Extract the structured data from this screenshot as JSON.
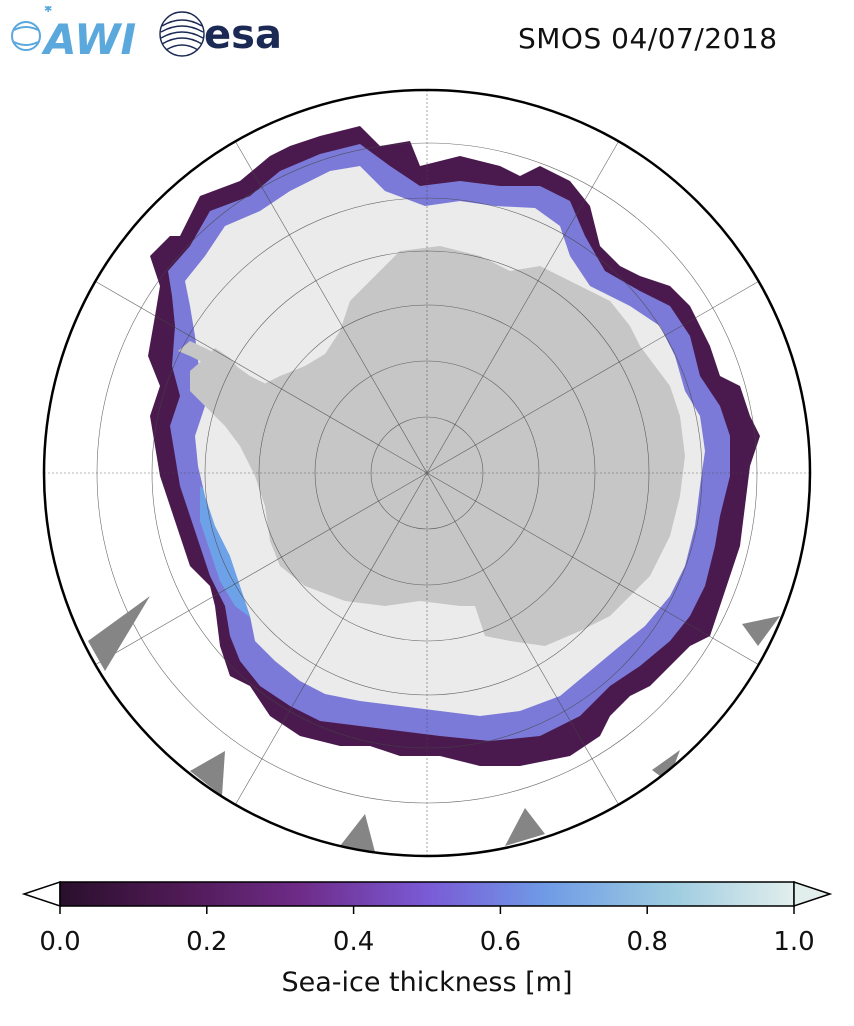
{
  "header": {
    "awi_logo_text": "AWI",
    "esa_logo_text": "esa",
    "date_title": "SMOS 04/07/2018"
  },
  "map": {
    "projection": "south-polar-stereographic",
    "central_point": "south-pole",
    "graticule": "on",
    "layers": [
      "ocean",
      "sea-ice-thickness",
      "antarctica-land",
      "no-data-gaps"
    ],
    "colors": {
      "ocean": "#ffffff",
      "land": "#c6c6c6",
      "sea_ice_thick": "#ebebeb",
      "no_data": "#858585",
      "boundary": "#000000"
    }
  },
  "colorbar": {
    "label": "Sea-ice thickness [m]",
    "min": 0.0,
    "max": 1.0,
    "ticks": [
      "0.0",
      "0.2",
      "0.4",
      "0.6",
      "0.8",
      "1.0"
    ],
    "colors": [
      "#2a0f2c",
      "#4e1a54",
      "#6f2c89",
      "#7a5ad6",
      "#6f9ae6",
      "#9ccbe0",
      "#e2eeec"
    ],
    "extend": "both"
  }
}
